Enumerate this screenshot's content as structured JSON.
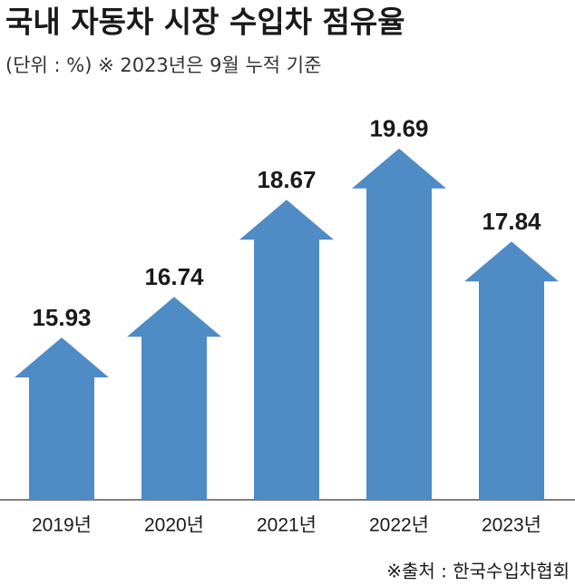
{
  "chart_data": {
    "type": "arrow-bar",
    "title": "국내 자동차 시장 수입차 점유율",
    "subtitle": "(단위 : %) ※ 2023년은 9월 누적 기준",
    "source": "※출처 : 한국수입차협회",
    "categories": [
      "2019년",
      "2020년",
      "2021년",
      "2022년",
      "2023년"
    ],
    "values": [
      15.93,
      16.74,
      18.67,
      19.69,
      17.84
    ],
    "color": "#4f8bc4",
    "ylim": [
      12.7,
      20.3
    ]
  }
}
